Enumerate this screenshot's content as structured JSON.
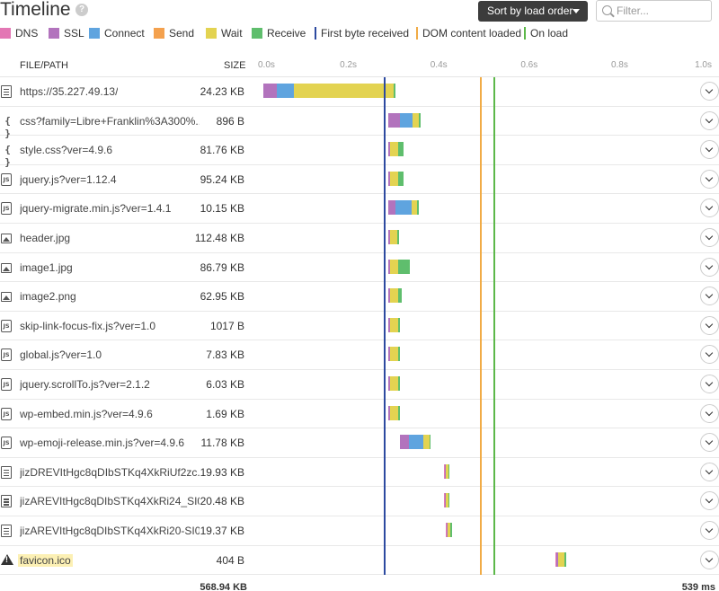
{
  "header": {
    "title": "Timeline",
    "help": "?",
    "sort_label": "Sort by load order",
    "filter_placeholder": "Filter...",
    "filter_value": ""
  },
  "legend": [
    {
      "label": "DNS",
      "color": "#e377b4",
      "kind": "swatch"
    },
    {
      "label": "SSL",
      "color": "#b273bd",
      "kind": "swatch"
    },
    {
      "label": "Connect",
      "color": "#5fa4df",
      "kind": "swatch"
    },
    {
      "label": "Send",
      "color": "#f4a14e",
      "kind": "swatch"
    },
    {
      "label": "Wait",
      "color": "#e3d351",
      "kind": "swatch"
    },
    {
      "label": "Receive",
      "color": "#5fbe6d",
      "kind": "swatch"
    },
    {
      "label": "First byte received",
      "color": "#2d4aa0",
      "kind": "line"
    },
    {
      "label": "DOM content loaded",
      "color": "#f1ab46",
      "kind": "line"
    },
    {
      "label": "On load",
      "color": "#5cb849",
      "kind": "line"
    }
  ],
  "columns": {
    "path": "FILE/PATH",
    "size": "SIZE"
  },
  "axis": {
    "ticks": [
      "0.0s",
      "0.2s",
      "0.4s",
      "0.6s",
      "0.8s",
      "1.0s"
    ],
    "max_seconds": 1.0
  },
  "markers": {
    "first_byte": 0.286,
    "dom_content_loaded": 0.503,
    "on_load": 0.533
  },
  "rows": [
    {
      "type": "doc",
      "icon": "document-icon",
      "name": "https://35.227.49.13/",
      "size": "24.23 KB",
      "segments": [
        {
          "phase": "SSL",
          "start": 0.013,
          "dur": 0.03
        },
        {
          "phase": "Connect",
          "start": 0.043,
          "dur": 0.039
        },
        {
          "phase": "Wait",
          "start": 0.082,
          "dur": 0.226
        },
        {
          "phase": "Receive",
          "start": 0.308,
          "dur": 0.002
        }
      ]
    },
    {
      "type": "css",
      "icon": "css-icon",
      "name": "css?family=Libre+Franklin%3A300%...",
      "size": "896 B",
      "segments": [
        {
          "phase": "SSL",
          "start": 0.295,
          "dur": 0.027
        },
        {
          "phase": "Connect",
          "start": 0.322,
          "dur": 0.029
        },
        {
          "phase": "Wait",
          "start": 0.351,
          "dur": 0.014
        },
        {
          "phase": "Receive",
          "start": 0.365,
          "dur": 0.003
        }
      ]
    },
    {
      "type": "css",
      "icon": "css-icon",
      "name": "style.css?ver=4.9.6",
      "size": "81.76 KB",
      "segments": [
        {
          "phase": "SSL",
          "start": 0.295,
          "dur": 0.004
        },
        {
          "phase": "Wait",
          "start": 0.299,
          "dur": 0.018
        },
        {
          "phase": "Receive",
          "start": 0.317,
          "dur": 0.013
        }
      ]
    },
    {
      "type": "js",
      "icon": "javascript-icon",
      "name": "jquery.js?ver=1.12.4",
      "size": "95.24 KB",
      "segments": [
        {
          "phase": "SSL",
          "start": 0.295,
          "dur": 0.004
        },
        {
          "phase": "Wait",
          "start": 0.299,
          "dur": 0.018
        },
        {
          "phase": "Receive",
          "start": 0.317,
          "dur": 0.013
        }
      ]
    },
    {
      "type": "js",
      "icon": "javascript-icon",
      "name": "jquery-migrate.min.js?ver=1.4.1",
      "size": "10.15 KB",
      "segments": [
        {
          "phase": "SSL",
          "start": 0.295,
          "dur": 0.017
        },
        {
          "phase": "Connect",
          "start": 0.312,
          "dur": 0.036
        },
        {
          "phase": "Wait",
          "start": 0.348,
          "dur": 0.013
        },
        {
          "phase": "Receive",
          "start": 0.361,
          "dur": 0.003
        }
      ]
    },
    {
      "type": "img",
      "icon": "image-icon",
      "name": "header.jpg",
      "size": "112.48 KB",
      "segments": [
        {
          "phase": "SSL",
          "start": 0.296,
          "dur": 0.004
        },
        {
          "phase": "Wait",
          "start": 0.3,
          "dur": 0.016
        },
        {
          "phase": "Receive",
          "start": 0.316,
          "dur": 0.004
        }
      ]
    },
    {
      "type": "img",
      "icon": "image-icon",
      "name": "image1.jpg",
      "size": "86.79 KB",
      "segments": [
        {
          "phase": "SSL",
          "start": 0.296,
          "dur": 0.004
        },
        {
          "phase": "Wait",
          "start": 0.3,
          "dur": 0.018
        },
        {
          "phase": "Receive",
          "start": 0.318,
          "dur": 0.026
        }
      ]
    },
    {
      "type": "img",
      "icon": "image-icon",
      "name": "image2.png",
      "size": "62.95 KB",
      "segments": [
        {
          "phase": "SSL",
          "start": 0.296,
          "dur": 0.004
        },
        {
          "phase": "Wait",
          "start": 0.3,
          "dur": 0.018
        },
        {
          "phase": "Receive",
          "start": 0.318,
          "dur": 0.007
        }
      ]
    },
    {
      "type": "js",
      "icon": "javascript-icon",
      "name": "skip-link-focus-fix.js?ver=1.0",
      "size": "1017 B",
      "segments": [
        {
          "phase": "SSL",
          "start": 0.296,
          "dur": 0.004
        },
        {
          "phase": "Wait",
          "start": 0.3,
          "dur": 0.018
        },
        {
          "phase": "Receive",
          "start": 0.318,
          "dur": 0.002
        }
      ]
    },
    {
      "type": "js",
      "icon": "javascript-icon",
      "name": "global.js?ver=1.0",
      "size": "7.83 KB",
      "segments": [
        {
          "phase": "SSL",
          "start": 0.296,
          "dur": 0.004
        },
        {
          "phase": "Wait",
          "start": 0.3,
          "dur": 0.018
        },
        {
          "phase": "Receive",
          "start": 0.318,
          "dur": 0.002
        }
      ]
    },
    {
      "type": "js",
      "icon": "javascript-icon",
      "name": "jquery.scrollTo.js?ver=2.1.2",
      "size": "6.03 KB",
      "segments": [
        {
          "phase": "SSL",
          "start": 0.296,
          "dur": 0.004
        },
        {
          "phase": "Wait",
          "start": 0.3,
          "dur": 0.018
        },
        {
          "phase": "Receive",
          "start": 0.318,
          "dur": 0.002
        }
      ]
    },
    {
      "type": "js",
      "icon": "javascript-icon",
      "name": "wp-embed.min.js?ver=4.9.6",
      "size": "1.69 KB",
      "segments": [
        {
          "phase": "SSL",
          "start": 0.296,
          "dur": 0.004
        },
        {
          "phase": "Wait",
          "start": 0.3,
          "dur": 0.018
        },
        {
          "phase": "Receive",
          "start": 0.318,
          "dur": 0.002
        }
      ]
    },
    {
      "type": "js",
      "icon": "javascript-icon",
      "name": "wp-emoji-release.min.js?ver=4.9.6",
      "size": "11.78 KB",
      "segments": [
        {
          "phase": "SSL",
          "start": 0.322,
          "dur": 0.02
        },
        {
          "phase": "Connect",
          "start": 0.342,
          "dur": 0.033
        },
        {
          "phase": "Wait",
          "start": 0.375,
          "dur": 0.014
        },
        {
          "phase": "Receive",
          "start": 0.389,
          "dur": 0.002
        }
      ]
    },
    {
      "type": "doc",
      "icon": "document-icon",
      "name": "jizDREVItHgc8qDIbSTKq4XkRiUf2zc...",
      "size": "19.93 KB",
      "segments": [
        {
          "phase": "DNS",
          "start": 0.421,
          "dur": 0.002
        },
        {
          "phase": "SSL",
          "start": 0.423,
          "dur": 0.002
        },
        {
          "phase": "Wait",
          "start": 0.425,
          "dur": 0.006
        },
        {
          "phase": "Receive",
          "start": 0.431,
          "dur": 0.003
        }
      ]
    },
    {
      "type": "doc",
      "icon": "document-icon",
      "name": "jizAREVItHgc8qDIbSTKq4XkRi24_SI0...",
      "size": "20.48 KB",
      "segments": [
        {
          "phase": "DNS",
          "start": 0.421,
          "dur": 0.002
        },
        {
          "phase": "SSL",
          "start": 0.423,
          "dur": 0.002
        },
        {
          "phase": "Wait",
          "start": 0.425,
          "dur": 0.006
        },
        {
          "phase": "Receive",
          "start": 0.431,
          "dur": 0.003
        }
      ]
    },
    {
      "type": "doc",
      "icon": "document-icon",
      "name": "jizAREVItHgc8qDIbSTKq4XkRi20-SI0...",
      "size": "19.37 KB",
      "segments": [
        {
          "phase": "DNS",
          "start": 0.426,
          "dur": 0.002
        },
        {
          "phase": "SSL",
          "start": 0.428,
          "dur": 0.002
        },
        {
          "phase": "Wait",
          "start": 0.43,
          "dur": 0.006
        },
        {
          "phase": "Receive",
          "start": 0.436,
          "dur": 0.004
        }
      ]
    },
    {
      "type": "warn",
      "icon": "warning-icon",
      "name": "favicon.ico",
      "size": "404 B",
      "highlight": true,
      "segments": [
        {
          "phase": "DNS",
          "start": 0.675,
          "dur": 0.002
        },
        {
          "phase": "SSL",
          "start": 0.677,
          "dur": 0.004
        },
        {
          "phase": "Wait",
          "start": 0.681,
          "dur": 0.014
        },
        {
          "phase": "Receive",
          "start": 0.695,
          "dur": 0.002
        }
      ]
    }
  ],
  "footer": {
    "total_size": "568.94 KB",
    "total_time": "539 ms"
  }
}
